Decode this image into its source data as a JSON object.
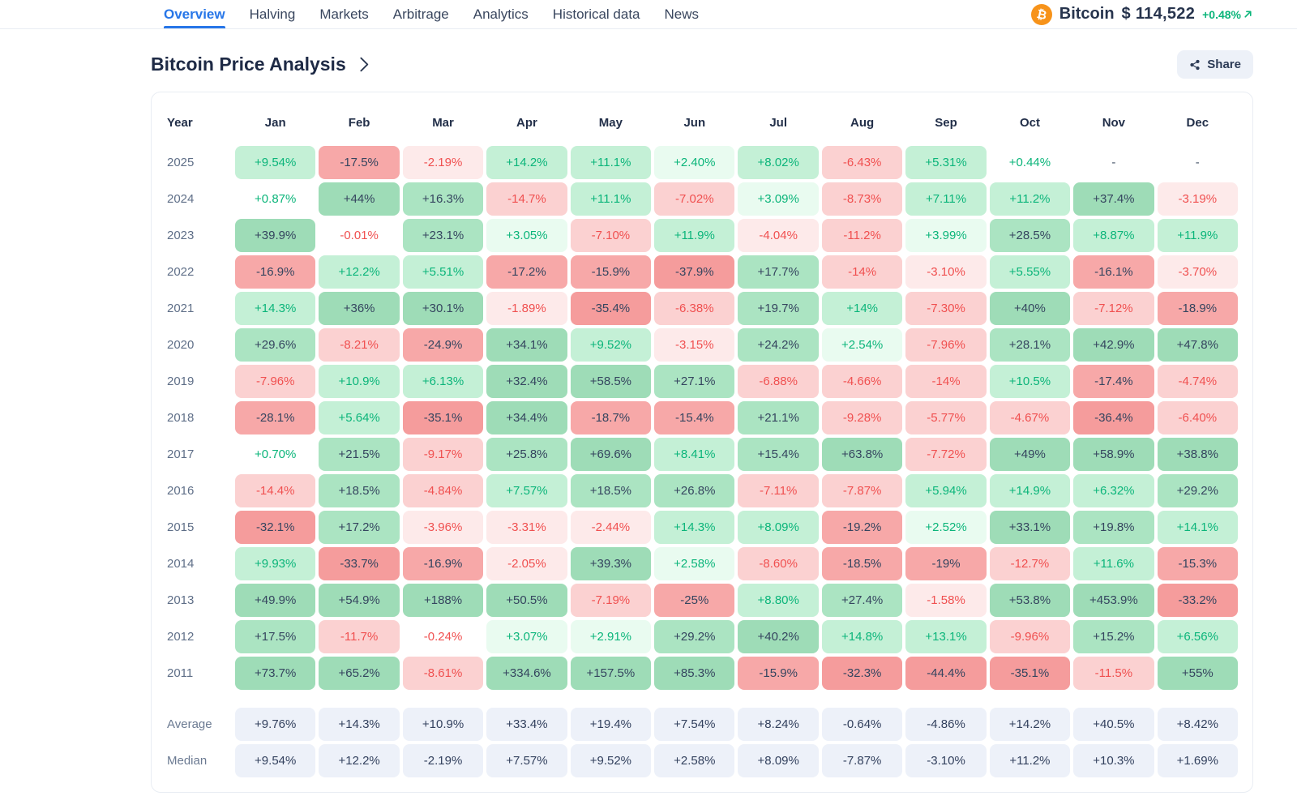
{
  "nav": {
    "items": [
      {
        "label": "Overview",
        "active": true
      },
      {
        "label": "Halving",
        "active": false
      },
      {
        "label": "Markets",
        "active": false
      },
      {
        "label": "Arbitrage",
        "active": false
      },
      {
        "label": "Analytics",
        "active": false
      },
      {
        "label": "Historical data",
        "active": false
      },
      {
        "label": "News",
        "active": false
      }
    ]
  },
  "ticker": {
    "coin": "Bitcoin",
    "price": "$ 114,522",
    "change": "+0.48%",
    "trend_icon": "arrow-up-right",
    "coin_icon": "bitcoin",
    "brand_color": "#f7931a",
    "change_color": "#0bb57a"
  },
  "header": {
    "title": "Bitcoin Price Analysis",
    "share_label": "Share"
  },
  "table": {
    "columns": [
      "Year",
      "Jan",
      "Feb",
      "Mar",
      "Apr",
      "May",
      "Jun",
      "Jul",
      "Aug",
      "Sep",
      "Oct",
      "Nov",
      "Dec"
    ],
    "rows": [
      {
        "year": "2025",
        "labels": [
          "+9.54%",
          "-17.5%",
          "-2.19%",
          "+14.2%",
          "+11.1%",
          "+2.40%",
          "+8.02%",
          "-6.43%",
          "+5.31%",
          "+0.44%",
          "-",
          "-"
        ],
        "values": [
          9.54,
          -17.5,
          -2.19,
          14.2,
          11.1,
          2.4,
          8.02,
          -6.43,
          5.31,
          0.44,
          null,
          null
        ]
      },
      {
        "year": "2024",
        "labels": [
          "+0.87%",
          "+44%",
          "+16.3%",
          "-14.7%",
          "+11.1%",
          "-7.02%",
          "+3.09%",
          "-8.73%",
          "+7.11%",
          "+11.2%",
          "+37.4%",
          "-3.19%"
        ],
        "values": [
          0.87,
          44,
          16.3,
          -14.7,
          11.1,
          -7.02,
          3.09,
          -8.73,
          7.11,
          11.2,
          37.4,
          -3.19
        ]
      },
      {
        "year": "2023",
        "labels": [
          "+39.9%",
          "-0.01%",
          "+23.1%",
          "+3.05%",
          "-7.10%",
          "+11.9%",
          "-4.04%",
          "-11.2%",
          "+3.99%",
          "+28.5%",
          "+8.87%",
          "+11.9%"
        ],
        "values": [
          39.9,
          -0.01,
          23.1,
          3.05,
          -7.1,
          11.9,
          -4.04,
          -11.2,
          3.99,
          28.5,
          8.87,
          11.9
        ]
      },
      {
        "year": "2022",
        "labels": [
          "-16.9%",
          "+12.2%",
          "+5.51%",
          "-17.2%",
          "-15.9%",
          "-37.9%",
          "+17.7%",
          "-14%",
          "-3.10%",
          "+5.55%",
          "-16.1%",
          "-3.70%"
        ],
        "values": [
          -16.9,
          12.2,
          5.51,
          -17.2,
          -15.9,
          -37.9,
          17.7,
          -14,
          -3.1,
          5.55,
          -16.1,
          -3.7
        ]
      },
      {
        "year": "2021",
        "labels": [
          "+14.3%",
          "+36%",
          "+30.1%",
          "-1.89%",
          "-35.4%",
          "-6.38%",
          "+19.7%",
          "+14%",
          "-7.30%",
          "+40%",
          "-7.12%",
          "-18.9%"
        ],
        "values": [
          14.3,
          36,
          30.1,
          -1.89,
          -35.4,
          -6.38,
          19.7,
          14,
          -7.3,
          40,
          -7.12,
          -18.9
        ]
      },
      {
        "year": "2020",
        "labels": [
          "+29.6%",
          "-8.21%",
          "-24.9%",
          "+34.1%",
          "+9.52%",
          "-3.15%",
          "+24.2%",
          "+2.54%",
          "-7.96%",
          "+28.1%",
          "+42.9%",
          "+47.8%"
        ],
        "values": [
          29.6,
          -8.21,
          -24.9,
          34.1,
          9.52,
          -3.15,
          24.2,
          2.54,
          -7.96,
          28.1,
          42.9,
          47.8
        ]
      },
      {
        "year": "2019",
        "labels": [
          "-7.96%",
          "+10.9%",
          "+6.13%",
          "+32.4%",
          "+58.5%",
          "+27.1%",
          "-6.88%",
          "-4.66%",
          "-14%",
          "+10.5%",
          "-17.4%",
          "-4.74%"
        ],
        "values": [
          -7.96,
          10.9,
          6.13,
          32.4,
          58.5,
          27.1,
          -6.88,
          -4.66,
          -14,
          10.5,
          -17.4,
          -4.74
        ]
      },
      {
        "year": "2018",
        "labels": [
          "-28.1%",
          "+5.64%",
          "-35.1%",
          "+34.4%",
          "-18.7%",
          "-15.4%",
          "+21.1%",
          "-9.28%",
          "-5.77%",
          "-4.67%",
          "-36.4%",
          "-6.40%"
        ],
        "values": [
          -28.1,
          5.64,
          -35.1,
          34.4,
          -18.7,
          -15.4,
          21.1,
          -9.28,
          -5.77,
          -4.67,
          -36.4,
          -6.4
        ]
      },
      {
        "year": "2017",
        "labels": [
          "+0.70%",
          "+21.5%",
          "-9.17%",
          "+25.8%",
          "+69.6%",
          "+8.41%",
          "+15.4%",
          "+63.8%",
          "-7.72%",
          "+49%",
          "+58.9%",
          "+38.8%"
        ],
        "values": [
          0.7,
          21.5,
          -9.17,
          25.8,
          69.6,
          8.41,
          15.4,
          63.8,
          -7.72,
          49,
          58.9,
          38.8
        ]
      },
      {
        "year": "2016",
        "labels": [
          "-14.4%",
          "+18.5%",
          "-4.84%",
          "+7.57%",
          "+18.5%",
          "+26.8%",
          "-7.11%",
          "-7.87%",
          "+5.94%",
          "+14.9%",
          "+6.32%",
          "+29.2%"
        ],
        "values": [
          -14.4,
          18.5,
          -4.84,
          7.57,
          18.5,
          26.8,
          -7.11,
          -7.87,
          5.94,
          14.9,
          6.32,
          29.2
        ]
      },
      {
        "year": "2015",
        "labels": [
          "-32.1%",
          "+17.2%",
          "-3.96%",
          "-3.31%",
          "-2.44%",
          "+14.3%",
          "+8.09%",
          "-19.2%",
          "+2.52%",
          "+33.1%",
          "+19.8%",
          "+14.1%"
        ],
        "values": [
          -32.1,
          17.2,
          -3.96,
          -3.31,
          -2.44,
          14.3,
          8.09,
          -19.2,
          2.52,
          33.1,
          19.8,
          14.1
        ]
      },
      {
        "year": "2014",
        "labels": [
          "+9.93%",
          "-33.7%",
          "-16.9%",
          "-2.05%",
          "+39.3%",
          "+2.58%",
          "-8.60%",
          "-18.5%",
          "-19%",
          "-12.7%",
          "+11.6%",
          "-15.3%"
        ],
        "values": [
          9.93,
          -33.7,
          -16.9,
          -2.05,
          39.3,
          2.58,
          -8.6,
          -18.5,
          -19,
          -12.7,
          11.6,
          -15.3
        ]
      },
      {
        "year": "2013",
        "labels": [
          "+49.9%",
          "+54.9%",
          "+188%",
          "+50.5%",
          "-7.19%",
          "-25%",
          "+8.80%",
          "+27.4%",
          "-1.58%",
          "+53.8%",
          "+453.9%",
          "-33.2%"
        ],
        "values": [
          49.9,
          54.9,
          188,
          50.5,
          -7.19,
          -25,
          8.8,
          27.4,
          -1.58,
          53.8,
          453.9,
          -33.2
        ]
      },
      {
        "year": "2012",
        "labels": [
          "+17.5%",
          "-11.7%",
          "-0.24%",
          "+3.07%",
          "+2.91%",
          "+29.2%",
          "+40.2%",
          "+14.8%",
          "+13.1%",
          "-9.96%",
          "+15.2%",
          "+6.56%"
        ],
        "values": [
          17.5,
          -11.7,
          -0.24,
          3.07,
          2.91,
          29.2,
          40.2,
          14.8,
          13.1,
          -9.96,
          15.2,
          6.56
        ]
      },
      {
        "year": "2011",
        "labels": [
          "+73.7%",
          "+65.2%",
          "-8.61%",
          "+334.6%",
          "+157.5%",
          "+85.3%",
          "-15.9%",
          "-32.3%",
          "-44.4%",
          "-35.1%",
          "-11.5%",
          "+55%"
        ],
        "values": [
          73.7,
          65.2,
          -8.61,
          334.6,
          157.5,
          85.3,
          -15.9,
          -32.3,
          -44.4,
          -35.1,
          -11.5,
          55
        ]
      }
    ],
    "summary": [
      {
        "label": "Average",
        "labels": [
          "+9.76%",
          "+14.3%",
          "+10.9%",
          "+33.4%",
          "+19.4%",
          "+7.54%",
          "+8.24%",
          "-0.64%",
          "-4.86%",
          "+14.2%",
          "+40.5%",
          "+8.42%"
        ]
      },
      {
        "label": "Median",
        "labels": [
          "+9.54%",
          "+12.2%",
          "-2.19%",
          "+7.57%",
          "+9.52%",
          "+2.58%",
          "+8.09%",
          "-7.87%",
          "-3.10%",
          "+11.2%",
          "+10.3%",
          "+1.69%"
        ]
      }
    ]
  },
  "colors": {
    "pos_strong_bg": "#9edcb7",
    "pos_med_bg": "#abe4c2",
    "pos_light_bg": "#c4f0d6",
    "pos_faint_bg": "#e9fbf0",
    "neg_strong_bg": "#f59c9c",
    "neg_med_bg": "#f7a8a8",
    "neg_light_bg": "#fbd1d1",
    "neg_faint_bg": "#fdeaea",
    "pos_text": "#0bb57a",
    "neg_text": "#f05050",
    "dark_text": "#35455f"
  }
}
